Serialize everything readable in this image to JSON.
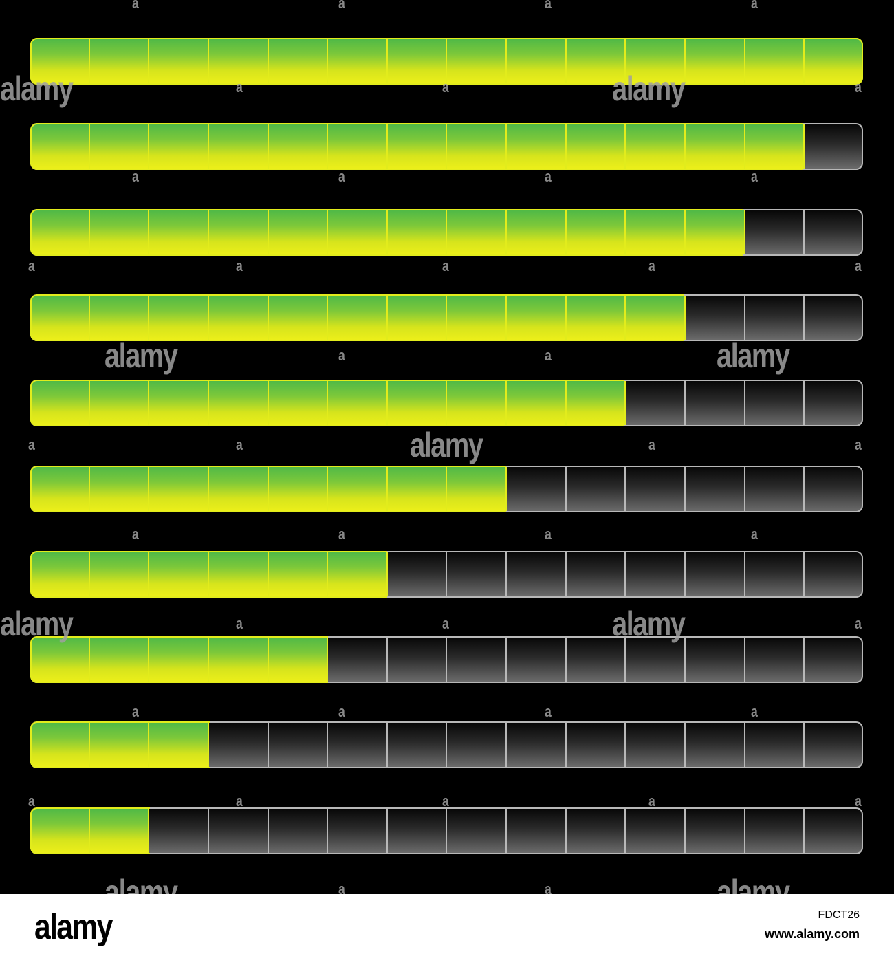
{
  "colors": {
    "background": "#000000",
    "filled_top": "#4cb848",
    "filled_bottom": "#eef01a",
    "filled_border": "#e2ec1c",
    "empty_top": "#050505",
    "empty_bottom": "#6e6e6e",
    "empty_border": "#b8b8b8"
  },
  "segments_per_bar": 14,
  "bars": [
    {
      "filled": 14
    },
    {
      "filled": 13
    },
    {
      "filled": 12
    },
    {
      "filled": 11
    },
    {
      "filled": 10
    },
    {
      "filled": 8
    },
    {
      "filled": 6
    },
    {
      "filled": 5
    },
    {
      "filled": 3
    },
    {
      "filled": 2
    }
  ],
  "watermark": {
    "logo_text": "alamy",
    "mark_text": "a"
  },
  "footer": {
    "logo": "alamy",
    "image_id": "FDCT26",
    "url": "www.alamy.com"
  }
}
